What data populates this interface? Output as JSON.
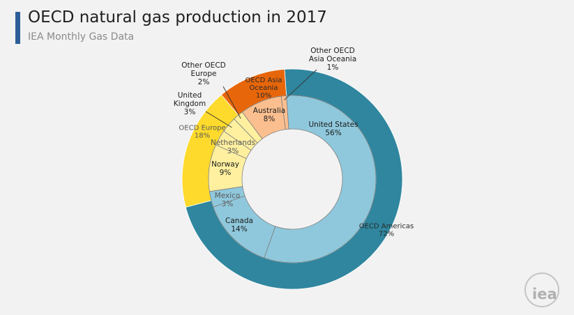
{
  "header": {
    "title": "OECD natural gas production in 2017",
    "subtitle": "IEA Monthly Gas Data"
  },
  "logo": {
    "text": "iea"
  },
  "colors": {
    "americas_outer": "#2f869e",
    "americas_inner": "#8fc8dc",
    "europe_outer": "#fdda2b",
    "europe_inner": "#fff0a0",
    "asia_outer": "#e7660a",
    "asia_inner": "#fbbf8f",
    "slice_edge": "#7f7f7f"
  },
  "chart_data": {
    "type": "pie",
    "title": "OECD natural gas production in 2017",
    "subtitle": "IEA Monthly Gas Data",
    "rings": [
      {
        "ring": "outer",
        "slices": [
          {
            "name": "OECD Americas",
            "percent_label": "72%",
            "value": 72
          },
          {
            "name": "OECD Europe",
            "percent_label": "18%",
            "value": 18
          },
          {
            "name": "OECD Asia Oceania",
            "percent_label": "10%",
            "value": 10
          }
        ]
      },
      {
        "ring": "inner",
        "slices": [
          {
            "name": "United States",
            "percent_label": "56%",
            "value": 56,
            "group": "OECD Americas"
          },
          {
            "name": "Canada",
            "percent_label": "14%",
            "value": 14,
            "group": "OECD Americas"
          },
          {
            "name": "Mexico",
            "percent_label": "3%",
            "value": 3,
            "group": "OECD Americas"
          },
          {
            "name": "Norway",
            "percent_label": "9%",
            "value": 9,
            "group": "OECD Europe"
          },
          {
            "name": "Netherlands",
            "percent_label": "3%",
            "value": 3,
            "group": "OECD Europe"
          },
          {
            "name": "United Kingdom",
            "percent_label": "3%",
            "value": 3,
            "group": "OECD Europe"
          },
          {
            "name": "Other OECD Europe",
            "percent_label": "2%",
            "value": 2,
            "group": "OECD Europe"
          },
          {
            "name": "Australia",
            "percent_label": "8%",
            "value": 8,
            "group": "OECD Asia Oceania"
          },
          {
            "name": "Other OECD Asia Oceania",
            "percent_label": "1%",
            "value": 1,
            "group": "OECD Asia Oceania"
          }
        ]
      }
    ]
  }
}
